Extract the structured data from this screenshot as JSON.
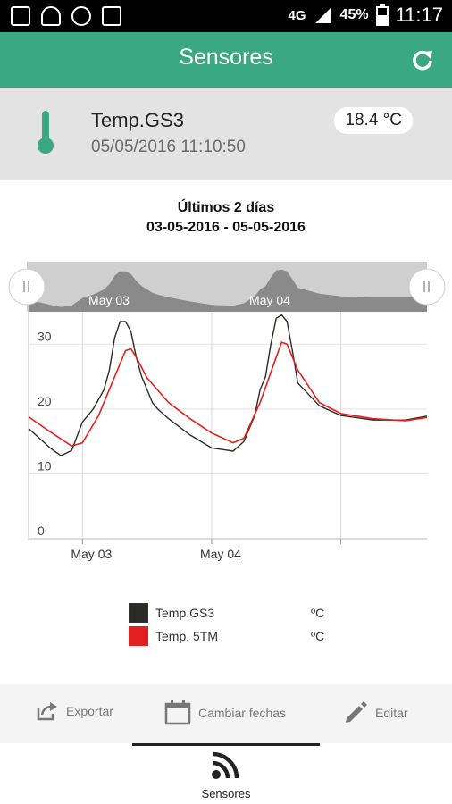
{
  "status_bar": {
    "network": "4G",
    "battery": "45%",
    "time": "11:17"
  },
  "app_bar": {
    "title": "Sensores"
  },
  "sensor": {
    "name": "Temp.GS3",
    "timestamp": "05/05/2016 11:10:50",
    "value": "18.4 °C"
  },
  "chart_header": {
    "period": "Últimos 2 días",
    "range": "03-05-2016 - 05-05-2016"
  },
  "navigator": {
    "labels": [
      "May 03",
      "May 04"
    ]
  },
  "chart_data": {
    "type": "line",
    "x_ticks": [
      "May 03",
      "May 04"
    ],
    "y_ticks": [
      "0",
      "10",
      "20",
      "30"
    ],
    "ylim": [
      0,
      35
    ],
    "xlim_hours": [
      -10,
      64
    ],
    "series": [
      {
        "name": "Temp.GS3",
        "unit": "ºC",
        "color": "#2b2b25",
        "x": [
          -10,
          -6,
          -4,
          -2,
          0,
          2,
          3,
          4,
          5,
          6,
          7,
          8,
          9,
          10,
          11,
          12,
          13,
          14,
          16,
          20,
          24,
          28,
          30,
          32,
          33,
          34,
          35,
          36,
          37,
          38,
          39,
          40,
          44,
          48,
          54,
          60,
          64
        ],
        "values": [
          17,
          14,
          12.8,
          13.6,
          18,
          20,
          21.5,
          23,
          26,
          31,
          33.5,
          33.5,
          32,
          28,
          25,
          23,
          21,
          20,
          18.5,
          16,
          14,
          13.5,
          15,
          19,
          23,
          25,
          30,
          34,
          34.5,
          33.5,
          29,
          24,
          20.5,
          19,
          18.3,
          18.3,
          18.9
        ]
      },
      {
        "name": "Temp. 5TM",
        "unit": "ºC",
        "color": "#e32020",
        "x": [
          -10,
          -6,
          -2,
          0,
          3,
          6,
          8,
          9,
          10,
          12,
          16,
          20,
          24,
          28,
          30,
          33,
          36,
          37,
          38,
          40,
          44,
          48,
          54,
          60,
          64
        ],
        "values": [
          18.8,
          16.5,
          14.3,
          14.8,
          19,
          25,
          29,
          29.3,
          28,
          24.8,
          21,
          18.5,
          16.3,
          14.8,
          15.5,
          21,
          28,
          30.3,
          30,
          26,
          21,
          19.3,
          18.5,
          18.2,
          18.7
        ]
      }
    ],
    "grid": true,
    "legend": "bottom"
  },
  "toolbar": {
    "export_label": "Exportar",
    "change_dates_label": "Cambiar fechas",
    "edit_label": "Editar"
  },
  "bottom_nav": {
    "sensors_label": "Sensores"
  },
  "colors": {
    "accent": "#3aa882",
    "card_bg": "#e3e3e3"
  }
}
